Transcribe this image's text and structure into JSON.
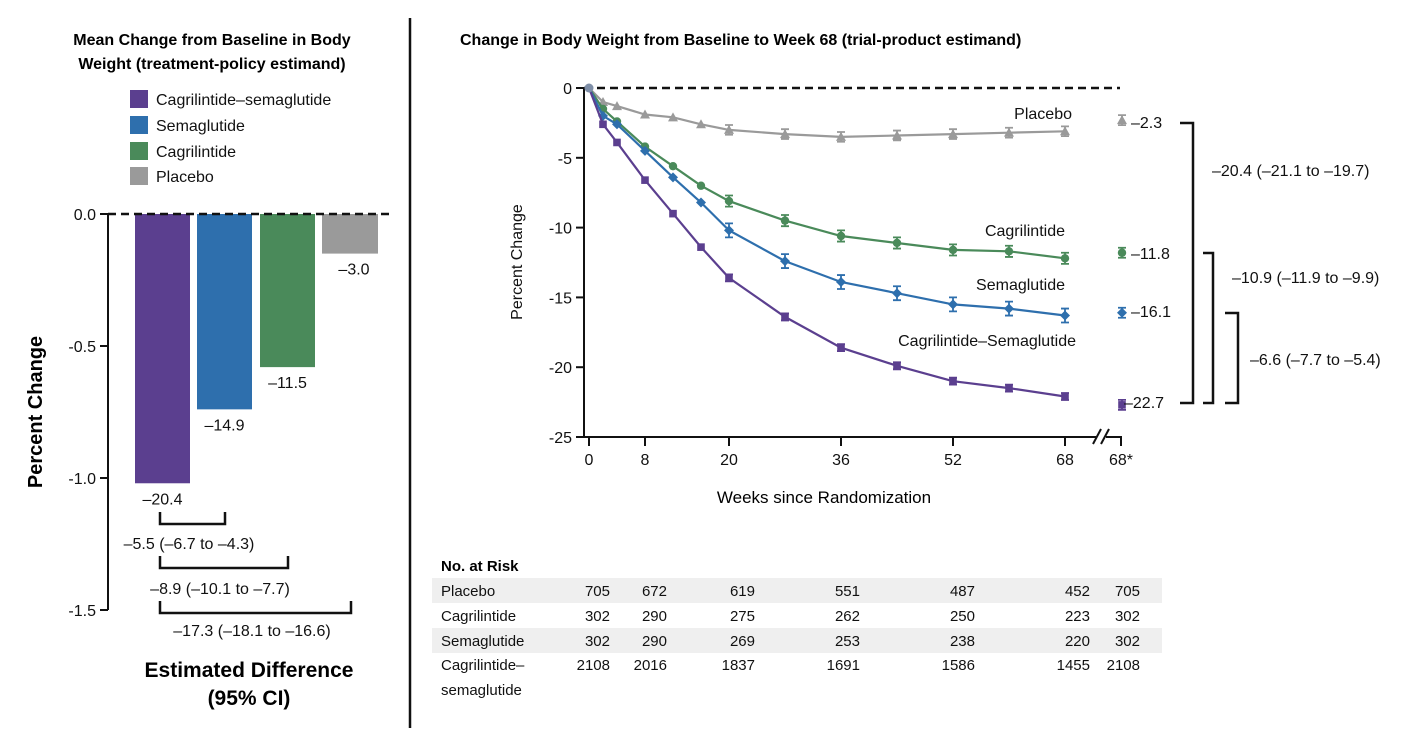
{
  "colors": {
    "cagrisema": "#5b3f8f",
    "semaglutide": "#2e6fad",
    "cagrilintide": "#4a8a5a",
    "placebo": "#9a9a9a",
    "risk_band": "#efefef"
  },
  "left_panel": {
    "title_line1": "Mean Change from Baseline in Body",
    "title_line2": "Weight (treatment-policy estimand)",
    "ylabel": "Percent Change",
    "footer_line1": "Estimated Difference",
    "footer_line2": "(95% CI)",
    "yticks": [
      "0.0",
      "-0.5",
      "-1.0",
      "-1.5"
    ],
    "differences": [
      "–5.5 (–6.7 to –4.3)",
      "–8.9 (–10.1 to –7.7)",
      "–17.3 (–18.1 to –16.6)"
    ]
  },
  "right_panel": {
    "title": "Change in Body Weight from Baseline to Week 68 (trial-product estimand)",
    "ylabel": "Percent Change",
    "xlabel": "Weeks since Randomization",
    "yticks": [
      "0",
      "-5",
      "-10",
      "-15",
      "-20",
      "-25"
    ],
    "xticks": [
      "0",
      "8",
      "20",
      "36",
      "52",
      "68",
      "68*"
    ],
    "series_labels": [
      "Placebo",
      "Cagrilintide",
      "Semaglutide",
      "Cagrilintide–Semaglutide"
    ],
    "endpoint_labels": [
      "–2.3",
      "–11.8",
      "–16.1",
      "–22.7"
    ],
    "differences": [
      "–20.4 (–21.1 to –19.7)",
      "–10.9 (–11.9 to –9.9)",
      "–6.6 (–7.7 to –5.4)"
    ]
  },
  "risk_table": {
    "title": "No. at Risk",
    "rows": [
      {
        "label": "Placebo",
        "values": [
          "705",
          "672",
          "619",
          "551",
          "487",
          "452",
          "705"
        ]
      },
      {
        "label": "Cagrilintide",
        "values": [
          "302",
          "290",
          "275",
          "262",
          "250",
          "223",
          "302"
        ]
      },
      {
        "label": "Semaglutide",
        "values": [
          "302",
          "290",
          "269",
          "253",
          "238",
          "220",
          "302"
        ]
      },
      {
        "label": "Cagrilintide–",
        "label2": "semaglutide",
        "values": [
          "2108",
          "2016",
          "1837",
          "1691",
          "1586",
          "1455",
          "2108"
        ]
      }
    ]
  },
  "chart_data": [
    {
      "type": "bar",
      "title": "Mean Change from Baseline in Body Weight (treatment-policy estimand)",
      "ylabel": "Percent Change",
      "ylim": [
        -1.5,
        0
      ],
      "legend_position": "top",
      "categories": [
        "Cagrilintide–semaglutide",
        "Semaglutide",
        "Cagrilintide",
        "Placebo"
      ],
      "values": [
        -1.02,
        -0.74,
        -0.58,
        -0.15
      ],
      "data_labels": [
        "–20.4",
        "–14.9",
        "–11.5",
        "–3.0"
      ]
    },
    {
      "type": "line",
      "title": "Change in Body Weight from Baseline to Week 68 (trial-product estimand)",
      "xlabel": "Weeks since Randomization",
      "ylabel": "Percent Change",
      "ylim": [
        -25,
        0
      ],
      "xlim": [
        0,
        68
      ],
      "series": [
        {
          "name": "Placebo",
          "x": [
            0,
            2,
            4,
            8,
            12,
            16,
            20,
            28,
            36,
            44,
            52,
            60,
            68
          ],
          "y": [
            0,
            -1.0,
            -1.3,
            -1.9,
            -2.1,
            -2.6,
            -3.0,
            -3.3,
            -3.5,
            -3.4,
            -3.3,
            -3.2,
            -3.1
          ],
          "err": 0.35,
          "marker": "triangle",
          "endpoint": -2.3
        },
        {
          "name": "Cagrilintide",
          "x": [
            0,
            2,
            4,
            8,
            12,
            16,
            20,
            28,
            36,
            44,
            52,
            60,
            68
          ],
          "y": [
            0,
            -1.5,
            -2.4,
            -4.2,
            -5.6,
            -7.0,
            -8.1,
            -9.5,
            -10.6,
            -11.1,
            -11.6,
            -11.7,
            -12.2
          ],
          "err": 0.4,
          "marker": "circle",
          "endpoint": -11.8
        },
        {
          "name": "Semaglutide",
          "x": [
            0,
            2,
            4,
            8,
            12,
            16,
            20,
            28,
            36,
            44,
            52,
            60,
            68
          ],
          "y": [
            0,
            -2.0,
            -2.6,
            -4.5,
            -6.4,
            -8.2,
            -10.2,
            -12.4,
            -13.9,
            -14.7,
            -15.5,
            -15.8,
            -16.3
          ],
          "err": 0.5,
          "marker": "diamond",
          "endpoint": -16.1
        },
        {
          "name": "Cagrilintide–Semaglutide",
          "x": [
            0,
            2,
            4,
            8,
            12,
            16,
            20,
            28,
            36,
            44,
            52,
            60,
            68
          ],
          "y": [
            0,
            -2.6,
            -3.9,
            -6.6,
            -9.0,
            -11.4,
            -13.6,
            -16.4,
            -18.6,
            -19.9,
            -21.0,
            -21.5,
            -22.1
          ],
          "err": 0.25,
          "marker": "square",
          "endpoint": -22.7
        }
      ]
    }
  ]
}
